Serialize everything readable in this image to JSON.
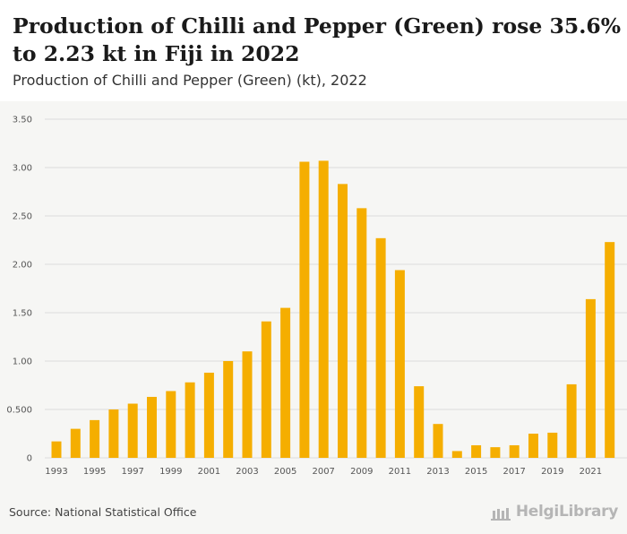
{
  "header": {
    "title": "Production of Chilli and Pepper (Green) rose 35.6% to 2.23 kt in Fiji in 2022",
    "subtitle": "Production of Chilli and Pepper (Green) (kt), 2022"
  },
  "footer": {
    "source": "Source: National Statistical Office",
    "brand": "HelgiLibrary"
  },
  "colors": {
    "bar": "#f5ae00",
    "grid": "#dcdcdc",
    "axis_text": "#555555"
  },
  "chart_data": {
    "type": "bar",
    "title": "Production of Chilli and Pepper (Green) rose 35.6% to 2.23 kt in Fiji in 2022",
    "subtitle": "Production of Chilli and Pepper (Green) (kt), 2022",
    "categories": [
      "1993",
      "1994",
      "1995",
      "1996",
      "1997",
      "1998",
      "1999",
      "2000",
      "2001",
      "2002",
      "2003",
      "2004",
      "2005",
      "2006",
      "2007",
      "2008",
      "2009",
      "2010",
      "2011",
      "2012",
      "2013",
      "2014",
      "2015",
      "2016",
      "2017",
      "2018",
      "2019",
      "2020",
      "2021",
      "2022"
    ],
    "x_tick_labels": [
      "1993",
      "1995",
      "1997",
      "1999",
      "2001",
      "2003",
      "2005",
      "2007",
      "2009",
      "2011",
      "2013",
      "2015",
      "2017",
      "2019",
      "2021"
    ],
    "values": [
      0.17,
      0.3,
      0.39,
      0.5,
      0.56,
      0.63,
      0.69,
      0.78,
      0.88,
      1.0,
      1.1,
      1.41,
      1.55,
      3.06,
      3.07,
      2.83,
      2.58,
      2.27,
      1.94,
      0.74,
      0.35,
      0.07,
      0.13,
      0.11,
      0.13,
      0.25,
      0.26,
      0.76,
      1.64,
      2.23
    ],
    "y_ticks": [
      0,
      0.5,
      1.0,
      1.5,
      2.0,
      2.5,
      3.0,
      3.5
    ],
    "y_tick_labels": [
      "0",
      "0.500",
      "1.00",
      "1.50",
      "2.00",
      "2.50",
      "3.00",
      "3.50"
    ],
    "ylim": [
      0,
      3.5
    ],
    "grid": true,
    "xlabel": "",
    "ylabel": ""
  }
}
